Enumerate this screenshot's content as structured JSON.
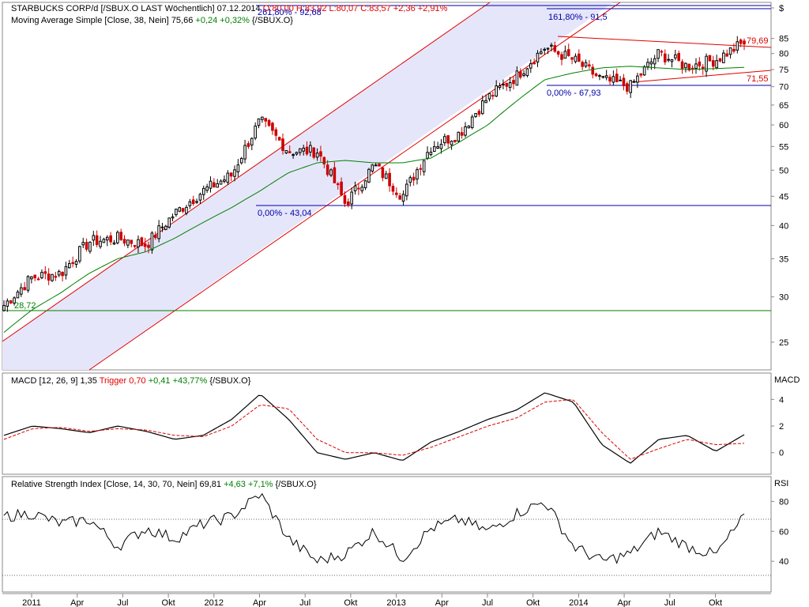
{
  "price_panel": {
    "title": "STARBUCKS CORP/d [/SBUX.O LAST Wöchentlich] 07.12.2014",
    "ohlc": "O:80,00 H:83,92 L:80,07 C:83,57 +2,36 +2,91%",
    "ma_name": "Moving Average Simple [Close, 38, Nein]",
    "ma_value": "75,66",
    "ma_change": "+0,24 +0,32%",
    "ma_symbol": "{/SBUX.O}",
    "currency": "$",
    "annotations": {
      "fib_261": "261,80% - 92,68",
      "fib_161": "161,80% - 91,5",
      "fib_0_low": "0,00% - 43,04",
      "fib_0_high": "0,00% - 67,93",
      "level_low": "28,72",
      "upper_right": "79,69",
      "lower_right": "71,55"
    }
  },
  "macd_panel": {
    "name": "MACD [12, 26, 9]",
    "value": "1,35",
    "trigger_label": "Trigger",
    "trigger_value": "0,70",
    "change": "+0,41 +43,77%",
    "symbol": "{/SBUX.O}",
    "axis_label": "MACD"
  },
  "rsi_panel": {
    "name": "Relative Strength Index [Close, 14, 30, 70, Nein]",
    "value": "69,81",
    "change": "+4,63 +7,1%",
    "symbol": "{/SBUX.O}",
    "axis_label": "RSI"
  },
  "colors": {
    "up": "#000000",
    "down": "#cc0000",
    "ma": "#008000",
    "channel": "#e00000",
    "channel_fill": "#e6e6fa",
    "fib": "#0000aa",
    "support": "#008000",
    "macd": "#000000",
    "trigger": "#e00000"
  },
  "chart_data": [
    {
      "type": "candlestick",
      "title": "STARBUCKS CORP/d [/SBUX.O LAST Wöchentlich] 07.12.2014",
      "yscale": "log",
      "ylim": [
        22.5,
        98
      ],
      "y_ticks": [
        "$",
        "85",
        "80",
        "75",
        "70",
        "65",
        "60",
        "55",
        "50",
        "45",
        "40",
        "35",
        "30",
        "25"
      ],
      "x_ticks": [
        "2011",
        "Apr",
        "Jul",
        "Okt",
        "2012",
        "Apr",
        "Jul",
        "Okt",
        "2013",
        "Apr",
        "Jul",
        "Okt",
        "2014",
        "Apr",
        "Jul",
        "Okt"
      ],
      "x": [
        "2010-11",
        "2011-01",
        "2011-03",
        "2011-05",
        "2011-07",
        "2011-09",
        "2011-11",
        "2012-01",
        "2012-03",
        "2012-04",
        "2012-06",
        "2012-07",
        "2012-09",
        "2012-11",
        "2013-01",
        "2013-03",
        "2013-05",
        "2013-07",
        "2013-09",
        "2013-11",
        "2014-01",
        "2014-03",
        "2014-05",
        "2014-07",
        "2014-09",
        "2014-11",
        "2014-12"
      ],
      "close": [
        29,
        32.5,
        33,
        37.5,
        38,
        37,
        42,
        46,
        49,
        61,
        54,
        54,
        43.5,
        51,
        45,
        55,
        58,
        67,
        73,
        82,
        78,
        72,
        70,
        80,
        76,
        78,
        83.57
      ],
      "series": [
        {
          "name": "Moving Average Simple [Close, 38, Nein]",
          "values": [
            26,
            28.5,
            30.5,
            33,
            35,
            36,
            38,
            40.5,
            43,
            46,
            49.5,
            51.5,
            52,
            51.5,
            51.5,
            52.5,
            56,
            60,
            66,
            72,
            74,
            75.5,
            76,
            75.5,
            75,
            75.3,
            75.66
          ]
        }
      ],
      "annotations": [
        "261,80% - 92,68",
        "161,80% - 91,5",
        "0,00% - 43,04",
        "0,00% - 67,93",
        "28,72",
        "79,69",
        "71,55"
      ]
    },
    {
      "type": "line",
      "title": "MACD [12, 26, 9]",
      "ylim": [
        -1.5,
        5.8
      ],
      "y_ticks": [
        "4",
        "2",
        "0"
      ],
      "series": [
        {
          "name": "MACD",
          "values": [
            1.3,
            2.0,
            1.8,
            1.5,
            2.0,
            1.6,
            1.0,
            1.3,
            2.5,
            4.4,
            2.5,
            0.0,
            -0.5,
            0.0,
            -0.6,
            0.8,
            1.6,
            2.5,
            3.2,
            4.5,
            3.8,
            0.6,
            -0.8,
            1.0,
            1.3,
            0.1,
            1.35
          ]
        },
        {
          "name": "Trigger",
          "values": [
            1.0,
            1.8,
            1.9,
            1.6,
            1.8,
            1.7,
            1.3,
            1.2,
            2.0,
            3.6,
            3.3,
            1.0,
            0.0,
            0.0,
            -0.2,
            0.4,
            1.2,
            2.0,
            2.6,
            3.8,
            4.0,
            1.5,
            -0.5,
            0.3,
            1.0,
            0.6,
            0.7
          ]
        }
      ]
    },
    {
      "type": "line",
      "title": "Relative Strength Index [Close, 14, 30, 70, Nein]",
      "ylim": [
        20,
        95
      ],
      "y_ticks": [
        "80",
        "60",
        "40"
      ],
      "series": [
        {
          "name": "RSI",
          "values": [
            70,
            72,
            65,
            68,
            50,
            62,
            55,
            65,
            70,
            85,
            55,
            40,
            45,
            60,
            42,
            62,
            68,
            60,
            72,
            80,
            50,
            40,
            45,
            60,
            50,
            44,
            69.81
          ]
        }
      ]
    }
  ]
}
